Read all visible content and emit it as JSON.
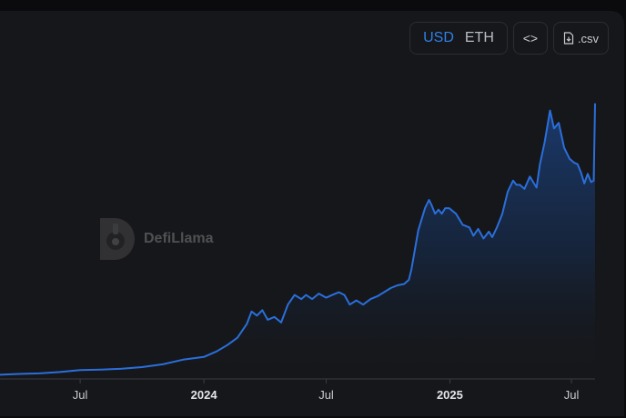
{
  "toolbar": {
    "currency_options": [
      "USD",
      "ETH"
    ],
    "selected_currency": "USD",
    "embed_label": "<>",
    "csv_label": ".csv"
  },
  "watermark": {
    "text": "DefiLlama"
  },
  "colors": {
    "accent": "#2f7fe8",
    "line": "#2a6fdb",
    "background": "#16171a"
  },
  "chart_data": {
    "type": "area",
    "title": "",
    "xlabel": "",
    "ylabel": "",
    "grid": false,
    "legend": "none",
    "y_axis_visible": false,
    "x_ticks": [
      {
        "label": "Jul",
        "date": "2023-07-01",
        "major": false
      },
      {
        "label": "2024",
        "date": "2024-01-01",
        "major": true
      },
      {
        "label": "Jul",
        "date": "2024-07-01",
        "major": false
      },
      {
        "label": "2025",
        "date": "2025-01-01",
        "major": true
      },
      {
        "label": "Jul",
        "date": "2025-07-01",
        "major": false
      }
    ],
    "xlim": [
      "2023-03-01",
      "2025-08-05"
    ],
    "ylim": [
      0,
      100
    ],
    "series": [
      {
        "x": [
          "2023-03-01",
          "2023-04-01",
          "2023-05-01",
          "2023-06-01",
          "2023-07-01",
          "2023-08-01",
          "2023-09-01",
          "2023-10-01",
          "2023-11-01",
          "2023-12-01",
          "2024-01-01",
          "2024-01-20",
          "2024-02-05",
          "2024-02-20",
          "2024-03-05",
          "2024-03-12",
          "2024-03-20",
          "2024-03-28",
          "2024-04-05",
          "2024-04-15",
          "2024-04-25",
          "2024-05-05",
          "2024-05-15",
          "2024-05-25",
          "2024-06-01",
          "2024-06-10",
          "2024-06-20",
          "2024-07-01",
          "2024-07-10",
          "2024-07-20",
          "2024-07-28",
          "2024-08-05",
          "2024-08-15",
          "2024-08-25",
          "2024-09-05",
          "2024-09-15",
          "2024-09-25",
          "2024-10-05",
          "2024-10-15",
          "2024-10-25",
          "2024-11-01",
          "2024-11-05",
          "2024-11-10",
          "2024-11-15",
          "2024-11-20",
          "2024-11-25",
          "2024-12-01",
          "2024-12-05",
          "2024-12-10",
          "2024-12-15",
          "2024-12-20",
          "2024-12-25",
          "2024-12-31",
          "2025-01-10",
          "2025-01-20",
          "2025-01-30",
          "2025-02-05",
          "2025-02-12",
          "2025-02-20",
          "2025-02-28",
          "2025-03-05",
          "2025-03-12",
          "2025-03-20",
          "2025-03-28",
          "2025-04-05",
          "2025-04-10",
          "2025-04-15",
          "2025-04-22",
          "2025-04-30",
          "2025-05-05",
          "2025-05-10",
          "2025-05-15",
          "2025-05-22",
          "2025-05-30",
          "2025-06-05",
          "2025-06-12",
          "2025-06-20",
          "2025-06-28",
          "2025-07-05",
          "2025-07-10",
          "2025-07-15",
          "2025-07-20",
          "2025-07-25",
          "2025-07-30",
          "2025-08-03",
          "2025-08-05"
        ],
        "values": [
          1.5,
          1.8,
          2.0,
          2.5,
          3.2,
          3.4,
          3.7,
          4.3,
          5.3,
          7.0,
          8.0,
          10.0,
          12.3,
          15.0,
          20.0,
          24.5,
          23.0,
          25.0,
          21.5,
          22.5,
          20.5,
          27.0,
          30.5,
          29.0,
          30.5,
          29.0,
          31.0,
          29.5,
          30.5,
          31.5,
          30.5,
          27.0,
          28.5,
          27.0,
          29.0,
          30.0,
          31.5,
          33.0,
          34.0,
          34.5,
          36.0,
          40.0,
          47.0,
          54.0,
          58.0,
          62.0,
          65.0,
          63.0,
          60.0,
          61.5,
          60.0,
          62.0,
          62.0,
          60.0,
          56.0,
          55.0,
          52.0,
          54.5,
          51.0,
          53.5,
          51.5,
          55.0,
          60.0,
          68.0,
          72.0,
          70.5,
          70.5,
          69.0,
          73.5,
          71.5,
          69.5,
          78.0,
          86.0,
          97.5,
          91.0,
          93.0,
          84.0,
          80.0,
          78.5,
          78.0,
          75.0,
          71.0,
          74.5,
          71.5,
          72.0,
          100.0
        ]
      }
    ]
  }
}
